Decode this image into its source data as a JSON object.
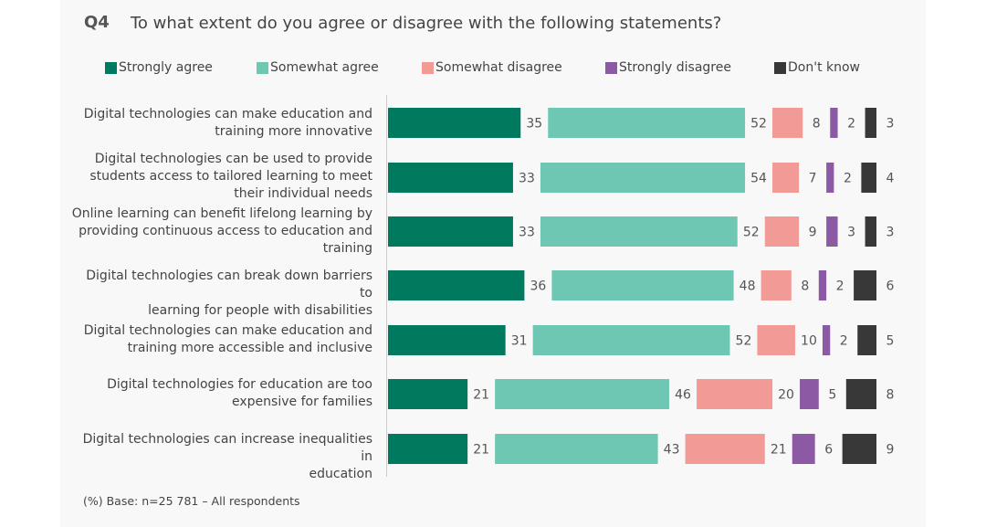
{
  "question": {
    "number": "Q4",
    "text": "To what extent do you agree or disagree with the following statements?"
  },
  "footnote": "(%) Base: n=25 781 – All respondents",
  "chart_data": {
    "type": "bar",
    "orientation": "horizontal",
    "stacked": true,
    "title": "To what extent do you agree or disagree with the following statements?",
    "legend_position": "top",
    "categories": [
      "Digital technologies can make education and training more innovative",
      "Digital technologies can be used to provide students access to tailored learning to meet their individual needs",
      "Online learning can benefit lifelong learning by providing continuous access to education and training",
      "Digital technologies can break down barriers to learning for people with disabilities",
      "Digital technologies can make education and training more accessible and inclusive",
      "Digital technologies for education are too expensive for families",
      "Digital technologies can increase inequalities in education"
    ],
    "category_lines": [
      [
        "Digital technologies can make education and",
        "training more innovative"
      ],
      [
        "Digital technologies can be used to provide",
        "students access to tailored learning to meet",
        "their individual needs"
      ],
      [
        "Online learning can benefit lifelong learning by",
        "providing continuous access to education and",
        "training"
      ],
      [
        "Digital technologies can break down barriers to",
        "learning for people with disabilities"
      ],
      [
        "Digital technologies can make education and",
        "training more accessible and inclusive"
      ],
      [
        "Digital technologies for education are too",
        "expensive for families"
      ],
      [
        "Digital technologies can increase inequalities in",
        "education"
      ]
    ],
    "series": [
      {
        "name": "Strongly agree",
        "color": "#007a5e",
        "values": [
          35,
          33,
          33,
          36,
          31,
          21,
          21
        ]
      },
      {
        "name": "Somewhat agree",
        "color": "#6ec7b3",
        "values": [
          52,
          54,
          52,
          48,
          52,
          46,
          43
        ]
      },
      {
        "name": "Somewhat disagree",
        "color": "#f19a96",
        "values": [
          8,
          7,
          9,
          8,
          10,
          20,
          21
        ]
      },
      {
        "name": "Strongly disagree",
        "color": "#8c5aa5",
        "values": [
          2,
          2,
          3,
          2,
          2,
          5,
          6
        ]
      },
      {
        "name": "Don't know",
        "color": "#383838",
        "values": [
          3,
          4,
          3,
          6,
          5,
          8,
          9
        ]
      }
    ],
    "unit": "%"
  }
}
